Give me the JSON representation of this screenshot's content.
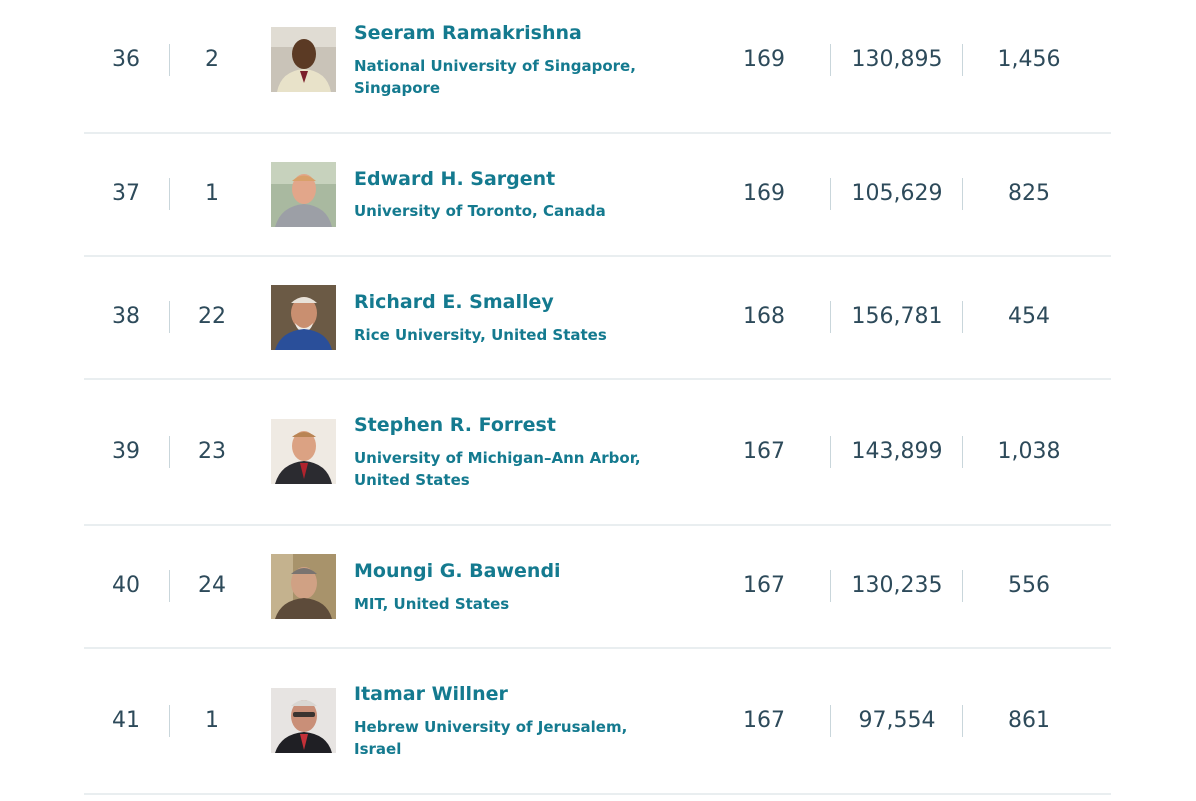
{
  "rows": [
    {
      "rank": "36",
      "country_rank": "2",
      "name": "Seeram Ramakrishna",
      "affiliation": "National University of Singapore, Singapore",
      "h_index": "169",
      "citations": "130,895",
      "publications": "1,456"
    },
    {
      "rank": "37",
      "country_rank": "1",
      "name": "Edward H. Sargent",
      "affiliation": "University of Toronto, Canada",
      "h_index": "169",
      "citations": "105,629",
      "publications": "825"
    },
    {
      "rank": "38",
      "country_rank": "22",
      "name": "Richard E. Smalley",
      "affiliation": "Rice University, United States",
      "h_index": "168",
      "citations": "156,781",
      "publications": "454"
    },
    {
      "rank": "39",
      "country_rank": "23",
      "name": "Stephen R. Forrest",
      "affiliation": "University of Michigan–Ann Arbor, United States",
      "h_index": "167",
      "citations": "143,899",
      "publications": "1,038"
    },
    {
      "rank": "40",
      "country_rank": "24",
      "name": "Moungi G. Bawendi",
      "affiliation": "MIT, United States",
      "h_index": "167",
      "citations": "130,235",
      "publications": "556"
    },
    {
      "rank": "41",
      "country_rank": "1",
      "name": "Itamar Willner",
      "affiliation": "Hebrew University of Jerusalem, Israel",
      "h_index": "167",
      "citations": "97,554",
      "publications": "861"
    }
  ],
  "colors": {
    "link": "#147a8f",
    "number_text": "#2d4a5a",
    "divider": "#e9eef0",
    "separator": "#c9d6db"
  }
}
